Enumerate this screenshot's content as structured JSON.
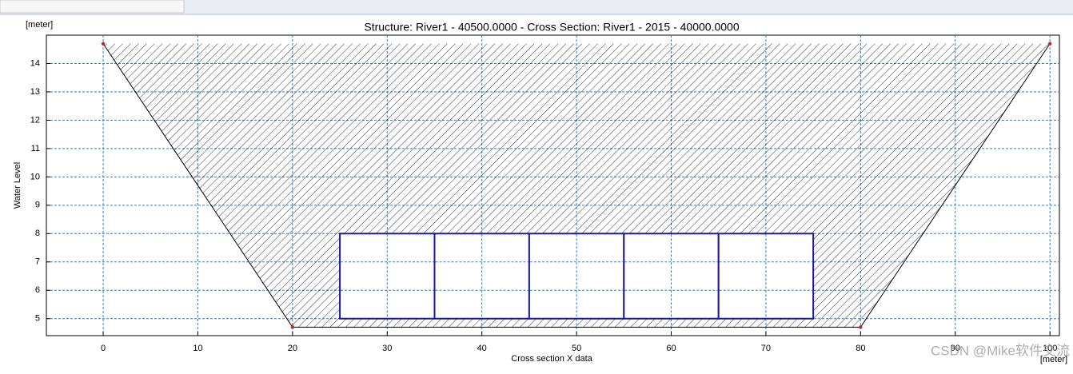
{
  "chart_data": {
    "type": "cross-section",
    "title": "Structure: River1 - 40500.0000 -      Cross Section: River1 - 2015 - 40000.0000",
    "y_unit": "[meter]",
    "x_unit": "[meter]",
    "ylabel": "Water Level",
    "xlabel": "Cross section X data",
    "watermark": "CSDN @Mike软件交流",
    "section": {
      "x": [
        0,
        20,
        80,
        100
      ],
      "y": [
        14.7,
        4.7,
        4.7,
        14.7
      ],
      "color": "#000000",
      "marker_color": "#c0282d"
    },
    "structure": {
      "x_edges": [
        25,
        35,
        45,
        55,
        65,
        75
      ],
      "bottom": 5,
      "top": 8,
      "color": "#1a1aa0"
    },
    "xlim": [
      -6,
      101
    ],
    "ylim": [
      4.4,
      15
    ],
    "xticks": [
      0,
      10,
      20,
      30,
      40,
      50,
      60,
      70,
      80,
      90,
      100
    ],
    "yticks": [
      5,
      6,
      7,
      8,
      9,
      10,
      11,
      12,
      13,
      14
    ],
    "grid": true
  }
}
